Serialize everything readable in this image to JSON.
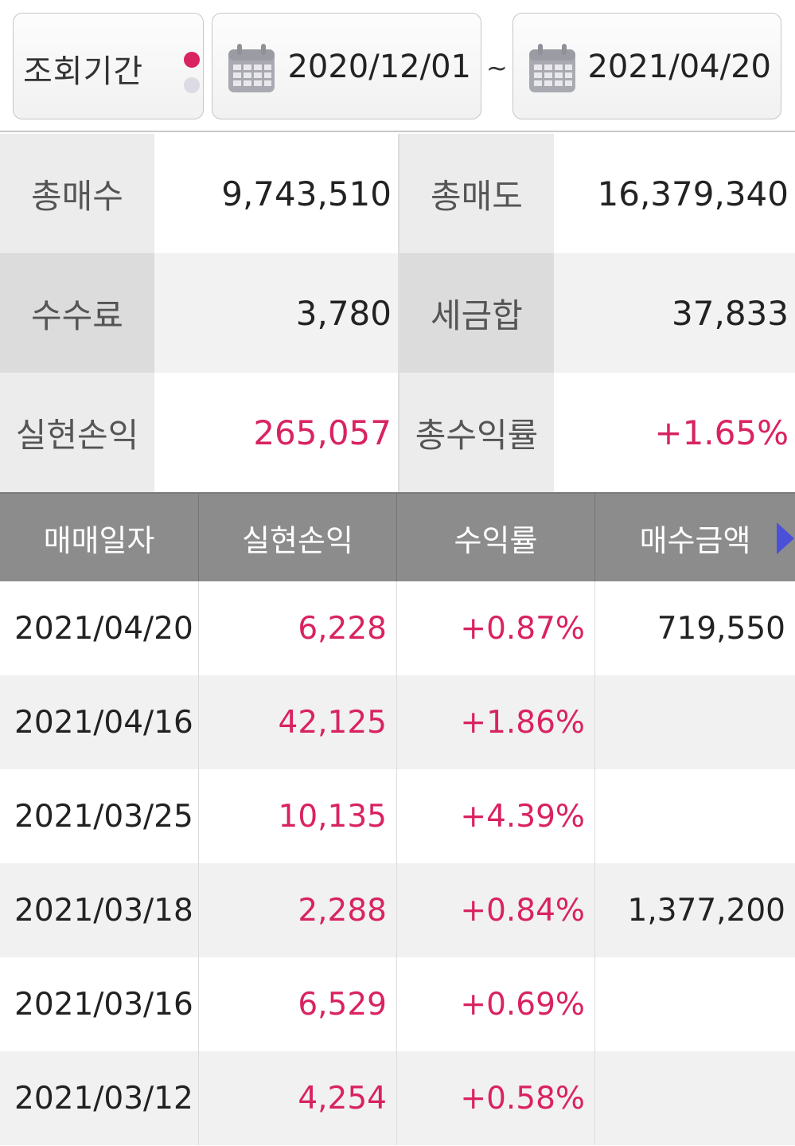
{
  "period": {
    "label": "조회기간",
    "start_date": "2020/12/01",
    "separator": "~",
    "end_date": "2021/04/20"
  },
  "summary": {
    "rows": [
      {
        "label1": "총매수",
        "value1": "9,743,510",
        "label2": "총매도",
        "value2": "16,379,340"
      },
      {
        "label1": "수수료",
        "value1": "3,780",
        "label2": "세금합",
        "value2": "37,833"
      },
      {
        "label1": "실현손익",
        "value1": "265,057",
        "label2": "총수익률",
        "value2": "+1.65%"
      }
    ]
  },
  "table": {
    "headers": [
      "매매일자",
      "실현손익",
      "수익률",
      "매수금액"
    ],
    "rows": [
      {
        "date": "2021/04/20",
        "profit": "6,228",
        "rate": "+0.87%",
        "buy_amount": "719,550"
      },
      {
        "date": "2021/04/16",
        "profit": "42,125",
        "rate": "+1.86%",
        "buy_amount": ""
      },
      {
        "date": "2021/03/25",
        "profit": "10,135",
        "rate": "+4.39%",
        "buy_amount": ""
      },
      {
        "date": "2021/03/18",
        "profit": "2,288",
        "rate": "+0.84%",
        "buy_amount": "1,377,200"
      },
      {
        "date": "2021/03/16",
        "profit": "6,529",
        "rate": "+0.69%",
        "buy_amount": ""
      },
      {
        "date": "2021/03/12",
        "profit": "4,254",
        "rate": "+0.58%",
        "buy_amount": ""
      }
    ]
  },
  "colors": {
    "accent_pink": "#d9235f",
    "arrow_blue": "#4a50d8",
    "header_gray": "#8c8c8c"
  },
  "icons": [
    "calendar-icon",
    "next-arrow-icon"
  ]
}
